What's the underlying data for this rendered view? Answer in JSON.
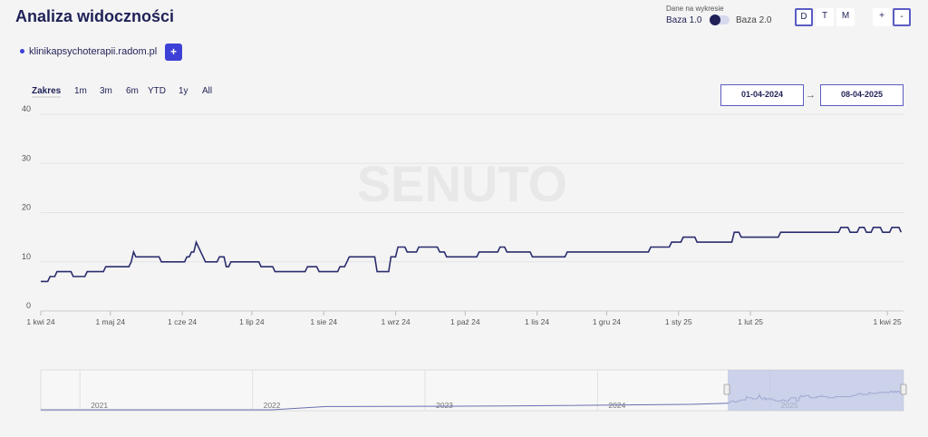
{
  "header": {
    "title": "Analiza widoczności",
    "data_caption": "Dane na wykresie",
    "base1_label": "Baza 1.0",
    "base2_label": "Baza 2.0",
    "granularity": [
      "D",
      "T",
      "M"
    ],
    "granularity_selected": "D",
    "zoom_in": "+",
    "zoom_out": "-"
  },
  "domain": {
    "name": "klinikapsychoterapii.radom.pl",
    "add_label": "+",
    "color": "#3d40d6"
  },
  "range": {
    "label": "Zakres",
    "options": [
      "1m",
      "3m",
      "6m",
      "YTD",
      "1y",
      "All"
    ],
    "from": "01-04-2024",
    "to": "08-04-2025",
    "arrow": "→"
  },
  "watermark": "SENUTO",
  "navigator": {
    "years": [
      "2021",
      "2022",
      "2023",
      "2024",
      "2025"
    ]
  },
  "chart_data": {
    "type": "line",
    "line_color": "#2b2d6e",
    "ylim": [
      0,
      40
    ],
    "y_ticks": [
      0,
      10,
      20,
      30,
      40
    ],
    "x_tick_labels": [
      "1 kwi 24",
      "1 maj 24",
      "1 cze 24",
      "1 lip 24",
      "1 sie 24",
      "1 wrz 24",
      "1 paź 24",
      "1 lis 24",
      "1 gru 24",
      "1 sty 25",
      "1 lut 25",
      "1 kwi 25"
    ],
    "x_tick_days": [
      0,
      30,
      61,
      91,
      122,
      153,
      183,
      214,
      244,
      275,
      306,
      365
    ],
    "x_range_days": [
      0,
      372
    ],
    "series": [
      {
        "x_days": [
          0,
          3,
          4,
          6,
          7,
          13,
          14,
          19,
          20,
          27,
          28,
          38,
          39,
          40,
          41,
          51,
          52,
          62,
          63,
          64,
          65,
          66,
          67,
          70,
          71,
          76,
          77,
          79,
          80,
          81,
          82,
          94,
          95,
          96,
          97,
          100,
          101,
          114,
          115,
          119,
          120,
          128,
          129,
          131,
          132,
          133,
          135,
          137,
          138,
          144,
          145,
          146,
          147,
          150,
          151,
          153,
          154,
          157,
          158,
          162,
          163,
          171,
          172,
          174,
          175,
          188,
          189,
          197,
          198,
          200,
          201,
          211,
          212,
          226,
          227,
          228,
          229,
          232,
          233,
          236,
          237,
          240,
          241,
          245,
          246,
          248,
          249,
          253,
          254,
          262,
          263,
          271,
          272,
          276,
          277,
          282,
          283,
          298,
          299,
          301,
          302,
          318,
          319,
          344,
          345,
          348,
          349,
          352,
          353,
          355,
          356,
          358,
          359,
          362,
          363,
          366,
          367,
          370,
          371
        ],
        "values": [
          6,
          6,
          7,
          7,
          8,
          8,
          7,
          7,
          8,
          8,
          9,
          9,
          10,
          12,
          11,
          11,
          10,
          10,
          11,
          11,
          12,
          12,
          14,
          11,
          10,
          10,
          11,
          11,
          9,
          9,
          10,
          10,
          9,
          9,
          9,
          9,
          8,
          8,
          9,
          9,
          8,
          8,
          9,
          9,
          10,
          11,
          11,
          11,
          11,
          11,
          8,
          8,
          8,
          8,
          11,
          11,
          13,
          13,
          12,
          12,
          13,
          13,
          12,
          12,
          11,
          11,
          12,
          12,
          13,
          13,
          12,
          12,
          11,
          11,
          12,
          12,
          12,
          12,
          12,
          12,
          12,
          12,
          12,
          12,
          12,
          12,
          12,
          12,
          12,
          12,
          13,
          13,
          14,
          14,
          15,
          15,
          14,
          14,
          16,
          16,
          15,
          15,
          16,
          16,
          17,
          17,
          16,
          16,
          17,
          17,
          16,
          16,
          17,
          17,
          16,
          16,
          17,
          17,
          16
        ]
      }
    ]
  }
}
